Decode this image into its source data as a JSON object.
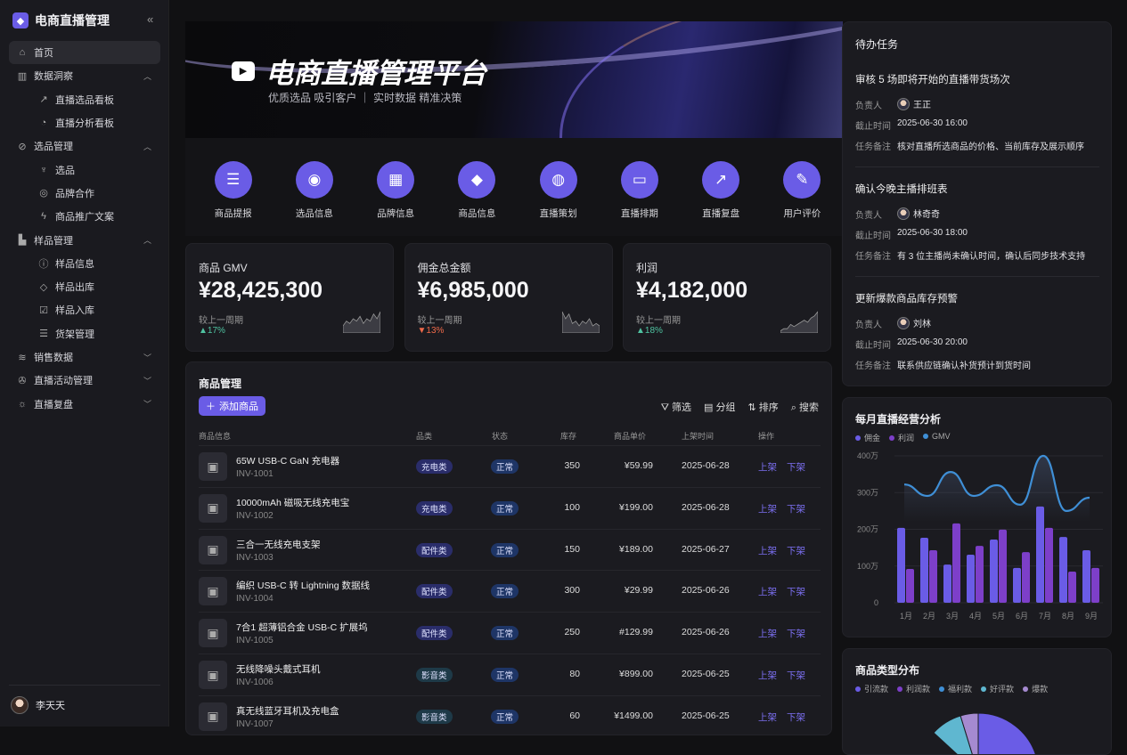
{
  "sidebar": {
    "brand": "电商直播管理",
    "collapse_icon": "double-chevron-left-icon",
    "items": [
      {
        "label": "首页",
        "icon": "home-icon",
        "level": 1,
        "active": true
      },
      {
        "label": "数据洞察",
        "icon": "bar-chart-icon",
        "level": 1,
        "expanded": true
      },
      {
        "label": "直播选品看板",
        "icon": "trend-icon",
        "level": 2
      },
      {
        "label": "直播分析看板",
        "icon": "pie-icon",
        "level": 2
      },
      {
        "label": "选品管理",
        "icon": "compass-icon",
        "level": 1,
        "expanded": true
      },
      {
        "label": "选品",
        "icon": "trophy-icon",
        "level": 2
      },
      {
        "label": "品牌合作",
        "icon": "globe-icon",
        "level": 2
      },
      {
        "label": "商品推广文案",
        "icon": "bolt-icon",
        "level": 2
      },
      {
        "label": "样品管理",
        "icon": "factory-icon",
        "level": 1,
        "expanded": true
      },
      {
        "label": "样品信息",
        "icon": "info-icon",
        "level": 2
      },
      {
        "label": "样品出库",
        "icon": "tag-icon",
        "level": 2
      },
      {
        "label": "样品入库",
        "icon": "checkbox-icon",
        "level": 2
      },
      {
        "label": "货架管理",
        "icon": "shelf-icon",
        "level": 2
      },
      {
        "label": "销售数据",
        "icon": "layers-icon",
        "level": 1,
        "expanded": false
      },
      {
        "label": "直播活动管理",
        "icon": "aperture-icon",
        "level": 1,
        "expanded": false
      },
      {
        "label": "直播复盘",
        "icon": "bulb-icon",
        "level": 1,
        "expanded": false
      }
    ],
    "user": "李天天"
  },
  "banner": {
    "title": "电商直播管理平台",
    "subtitle": "优质选品 吸引客户 ｜ 实时数据 精准决策"
  },
  "quick": [
    {
      "label": "商品提报",
      "icon": "server-icon",
      "g": "☰"
    },
    {
      "label": "选品信息",
      "icon": "globe-icon",
      "g": "◉"
    },
    {
      "label": "品牌信息",
      "icon": "grid-icon",
      "g": "▦"
    },
    {
      "label": "商品信息",
      "icon": "tag-icon",
      "g": "◆"
    },
    {
      "label": "直播策划",
      "icon": "planet-icon",
      "g": "◍"
    },
    {
      "label": "直播排期",
      "icon": "calendar-icon",
      "g": "▭"
    },
    {
      "label": "直播复盘",
      "icon": "chart-up-icon",
      "g": "↗"
    },
    {
      "label": "用户评价",
      "icon": "edit-icon",
      "g": "✎"
    }
  ],
  "stats": [
    {
      "label": "商品 GMV",
      "value": "¥28,425,300",
      "compare": "较上一周期",
      "delta": "▲17%",
      "trend": "up",
      "color": "#4fc3a1",
      "spark": [
        3,
        5,
        4,
        6,
        5,
        7,
        4,
        6,
        5,
        8,
        6,
        9
      ]
    },
    {
      "label": "佣金总金额",
      "value": "¥6,985,000",
      "compare": "较上一周期",
      "delta": "▼13%",
      "trend": "down",
      "color": "#f06a4a",
      "spark": [
        9,
        6,
        8,
        4,
        5,
        3,
        5,
        4,
        6,
        3,
        4,
        3
      ]
    },
    {
      "label": "利润",
      "value": "¥4,182,000",
      "compare": "较上一周期",
      "delta": "▲18%",
      "trend": "up",
      "color": "#4fc3a1",
      "spark": [
        1,
        2,
        2,
        4,
        3,
        4,
        5,
        6,
        5,
        7,
        8,
        10
      ]
    }
  ],
  "products": {
    "title": "商品管理",
    "add": "添加商品",
    "tools": [
      "筛选",
      "分组",
      "排序",
      "搜索"
    ],
    "columns": [
      "商品信息",
      "品类",
      "状态",
      "库存",
      "商品单价",
      "上架时间",
      "操作"
    ],
    "actions": [
      "上架",
      "下架"
    ],
    "rows": [
      {
        "name": "65W USB-C GaN 充电器",
        "id": "INV-1001",
        "cat": "充电类",
        "status": "正常",
        "stock": "350",
        "price": "¥59.99",
        "date": "2025-06-28"
      },
      {
        "name": "10000mAh 磁吸无线充电宝",
        "id": "INV-1002",
        "cat": "充电类",
        "status": "正常",
        "stock": "100",
        "price": "¥199.00",
        "date": "2025-06-28"
      },
      {
        "name": "三合一无线充电支架",
        "id": "INV-1003",
        "cat": "配件类",
        "status": "正常",
        "stock": "150",
        "price": "¥189.00",
        "date": "2025-06-27"
      },
      {
        "name": "编织 USB-C 转 Lightning 数据线",
        "id": "INV-1004",
        "cat": "配件类",
        "status": "正常",
        "stock": "300",
        "price": "¥29.99",
        "date": "2025-06-26"
      },
      {
        "name": "7合1 超薄铝合金 USB-C 扩展坞",
        "id": "INV-1005",
        "cat": "配件类",
        "status": "正常",
        "stock": "250",
        "price": "#129.99",
        "date": "2025-06-26"
      },
      {
        "name": "无线降噪头戴式耳机",
        "id": "INV-1006",
        "cat": "影音类",
        "status": "正常",
        "stock": "80",
        "price": "¥899.00",
        "date": "2025-06-25"
      },
      {
        "name": "真无线蓝牙耳机及充电盒",
        "id": "INV-1007",
        "cat": "影音类",
        "status": "正常",
        "stock": "60",
        "price": "¥1499.00",
        "date": "2025-06-25"
      }
    ]
  },
  "tasks": {
    "title": "待办任务",
    "owner_label": "负责人",
    "deadline_label": "截止时间",
    "note_label": "任务备注",
    "items": [
      {
        "title": "审核 5 场即将开始的直播带货场次",
        "owner": "王正",
        "deadline": "2025-06-30 16:00",
        "note": "核对直播所选商品的价格、当前库存及展示顺序"
      },
      {
        "title": "确认今晚主播排班表",
        "owner": "林奇奇",
        "deadline": "2025-06-30 18:00",
        "note": "有 3 位主播尚未确认时间，确认后同步技术支持"
      },
      {
        "title": "更新爆款商品库存预警",
        "owner": "刘林",
        "deadline": "2025-06-30 20:00",
        "note": "联系供应链确认补货预计到货时间"
      }
    ]
  },
  "chart_data": [
    {
      "type": "bar+line",
      "title": "每月直播经营分析",
      "categories": [
        "1月",
        "2月",
        "3月",
        "4月",
        "5月",
        "6月",
        "7月",
        "8月",
        "9月"
      ],
      "yticks": [
        "0",
        "100万",
        "200万",
        "300万",
        "400万"
      ],
      "ylim": [
        0,
        400
      ],
      "grid": true,
      "legend": "top-left",
      "series": [
        {
          "name": "佣金",
          "type": "bar",
          "color": "#6a5ce6",
          "values": [
            204,
            177,
            104,
            131,
            172,
            95,
            262,
            179,
            143
          ]
        },
        {
          "name": "利润",
          "type": "bar",
          "color": "#7d3fc9",
          "values": [
            92,
            143,
            216,
            155,
            199,
            138,
            204,
            85,
            95
          ]
        },
        {
          "name": "GMV",
          "type": "line",
          "color": "#3f8fd6",
          "values": [
            322,
            291,
            356,
            291,
            320,
            267,
            400,
            250,
            286
          ]
        }
      ]
    },
    {
      "type": "pie",
      "title": "商品类型分布",
      "legend": "top-left",
      "series": [
        {
          "name": "引流款",
          "color": "#6a5ce6"
        },
        {
          "name": "利润款",
          "color": "#7d3fc9"
        },
        {
          "name": "福利款",
          "color": "#3f8fd6"
        },
        {
          "name": "好评款",
          "color": "#5fb7d0"
        },
        {
          "name": "爆款",
          "color": "#a58ad0"
        }
      ]
    }
  ]
}
